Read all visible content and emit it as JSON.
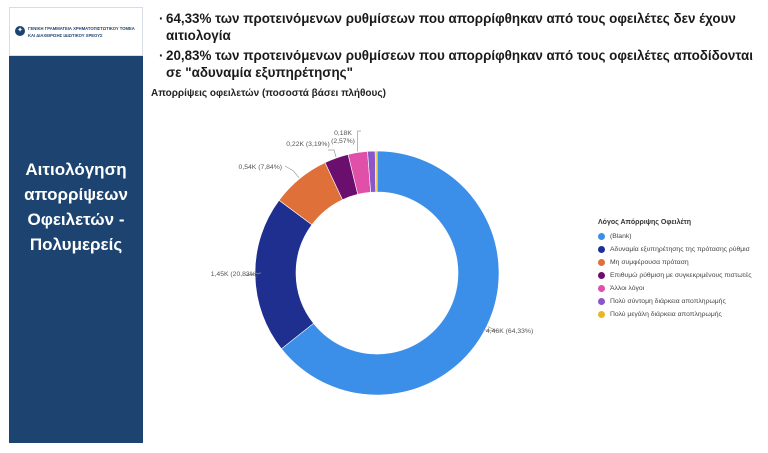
{
  "sidebar": {
    "logo_line1": "ΓΕΝΙΚΗ ΓΡΑΜΜΑΤΕΙΑ ΧΡΗΜΑΤΟΠΙΣΤΩΤΙΚΟΥ ΤΟΜΕΑ",
    "logo_line2": "ΚΑΙ ΔΙΑΧΕΙΡΙΣΗΣ ΙΔΙΩΤΙΚΟΥ ΧΡΕΟΥΣ",
    "title_lines": [
      "Αιτιολόγηση",
      "απορρίψεων",
      "Οφειλετών -",
      "Πολυμερείς"
    ],
    "background_color": "#1d4470"
  },
  "bullets": [
    "64,33% των προτεινόμενων ρυθμίσεων που απορρίφθηκαν από τους οφειλέτες δεν έχουν αιτιολογία",
    "20,83% των προτεινόμενων ρυθμίσεων που απορρίφθηκαν από τους οφειλέτες αποδίδονται σε \"αδυναμία εξυπηρέτησης\""
  ],
  "chart_data": {
    "type": "pie",
    "variant": "donut",
    "title": "Απορρίψεις οφειλετών (ποσοστά βάσει πλήθους)",
    "legend_title": "Λόγος Απόρριψης Οφειλέτη",
    "legend_position": "right",
    "slices": [
      {
        "name": "(Blank)",
        "value_label": "4,46K",
        "percent": 64.33,
        "percent_label": "64,33%",
        "color": "#3b8fe8"
      },
      {
        "name": "Αδυναμία εξυπηρέτησης της πρότασης ρύθμισ",
        "value_label": "1,45K",
        "percent": 20.83,
        "percent_label": "20,83%",
        "color": "#1f2f8f"
      },
      {
        "name": "Μη συμφέρουσα πρόταση",
        "value_label": "0,54K",
        "percent": 7.84,
        "percent_label": "7,84%",
        "color": "#e0703a"
      },
      {
        "name": "Επιθυμώ ρύθμιση με συγκεκριμένους πιστωτές",
        "value_label": "0,22K",
        "percent": 3.19,
        "percent_label": "3,19%",
        "color": "#6b0f6e"
      },
      {
        "name": "Άλλοι λόγοι",
        "value_label": "0,18K",
        "percent": 2.57,
        "percent_label": "2,57%",
        "color": "#e04fa8"
      },
      {
        "name": "Πολύ σύντομη διάρκεια αποπληρωμής",
        "value_label": "",
        "percent": 1.0,
        "percent_label": "",
        "color": "#8a56c8"
      },
      {
        "name": "Πολύ μεγάλη διάρκεια αποπληρωμής",
        "value_label": "",
        "percent": 0.24,
        "percent_label": "",
        "color": "#e8b820"
      }
    ]
  }
}
